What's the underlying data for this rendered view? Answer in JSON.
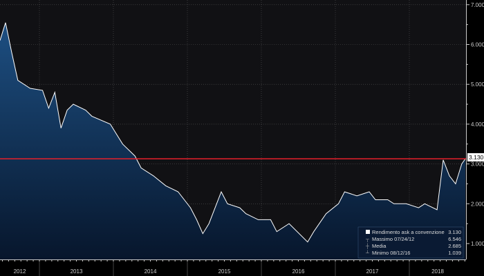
{
  "chart_data": {
    "type": "area",
    "title": "",
    "xlabel": "",
    "ylabel": "",
    "ylim": [
      0.6,
      7.1
    ],
    "yticks": [
      "1.000",
      "2.000",
      "3.000",
      "4.000",
      "5.000",
      "6.000",
      "7.000"
    ],
    "xticks": [
      "2012",
      "2013",
      "2014",
      "2015",
      "2016",
      "2017",
      "2018"
    ],
    "grid": true,
    "last_value_label": "3.130",
    "reference_line": {
      "value": 3.13,
      "color": "#e8202a"
    },
    "colors": {
      "line": "#ffffff",
      "fill_top": "#1d4f82",
      "fill_bottom": "#07162c",
      "background": "#111114"
    },
    "series": [
      {
        "name": "Rendimento ask a convenzione",
        "points": [
          [
            "2012-06",
            6.1
          ],
          [
            "2012-07",
            6.55
          ],
          [
            "2012-08",
            5.8
          ],
          [
            "2012-09",
            5.1
          ],
          [
            "2012-11",
            4.9
          ],
          [
            "2013-01",
            4.85
          ],
          [
            "2013-02",
            4.4
          ],
          [
            "2013-03",
            4.8
          ],
          [
            "2013-04",
            3.9
          ],
          [
            "2013-05",
            4.35
          ],
          [
            "2013-06",
            4.5
          ],
          [
            "2013-08",
            4.35
          ],
          [
            "2013-09",
            4.2
          ],
          [
            "2013-12",
            4.0
          ],
          [
            "2014-02",
            3.5
          ],
          [
            "2014-04",
            3.2
          ],
          [
            "2014-05",
            2.9
          ],
          [
            "2014-07",
            2.7
          ],
          [
            "2014-09",
            2.45
          ],
          [
            "2014-11",
            2.3
          ],
          [
            "2015-01",
            1.9
          ],
          [
            "2015-02",
            1.6
          ],
          [
            "2015-03",
            1.25
          ],
          [
            "2015-04",
            1.5
          ],
          [
            "2015-06",
            2.3
          ],
          [
            "2015-07",
            2.0
          ],
          [
            "2015-09",
            1.9
          ],
          [
            "2015-10",
            1.75
          ],
          [
            "2015-12",
            1.6
          ],
          [
            "2016-02",
            1.6
          ],
          [
            "2016-03",
            1.3
          ],
          [
            "2016-05",
            1.5
          ],
          [
            "2016-08",
            1.04
          ],
          [
            "2016-09",
            1.3
          ],
          [
            "2016-11",
            1.75
          ],
          [
            "2017-01",
            2.0
          ],
          [
            "2017-02",
            2.3
          ],
          [
            "2017-04",
            2.2
          ],
          [
            "2017-06",
            2.3
          ],
          [
            "2017-07",
            2.1
          ],
          [
            "2017-09",
            2.1
          ],
          [
            "2017-10",
            2.0
          ],
          [
            "2017-12",
            2.0
          ],
          [
            "2018-02",
            1.9
          ],
          [
            "2018-03",
            2.0
          ],
          [
            "2018-05",
            1.85
          ],
          [
            "2018-06",
            3.1
          ],
          [
            "2018-07",
            2.7
          ],
          [
            "2018-08",
            2.5
          ],
          [
            "2018-09",
            3.0
          ],
          [
            "2018-10",
            3.13
          ]
        ]
      }
    ],
    "legend": {
      "placement": "bottom-right",
      "entries": [
        {
          "label": "Rendimento ask a convenzione",
          "value": "3.130"
        },
        {
          "label": "Massimo 07/24/12",
          "value": "6.546"
        },
        {
          "label": "Media",
          "value": "2.685"
        },
        {
          "label": "Minimo 08/12/16",
          "value": "1.039"
        }
      ]
    }
  }
}
